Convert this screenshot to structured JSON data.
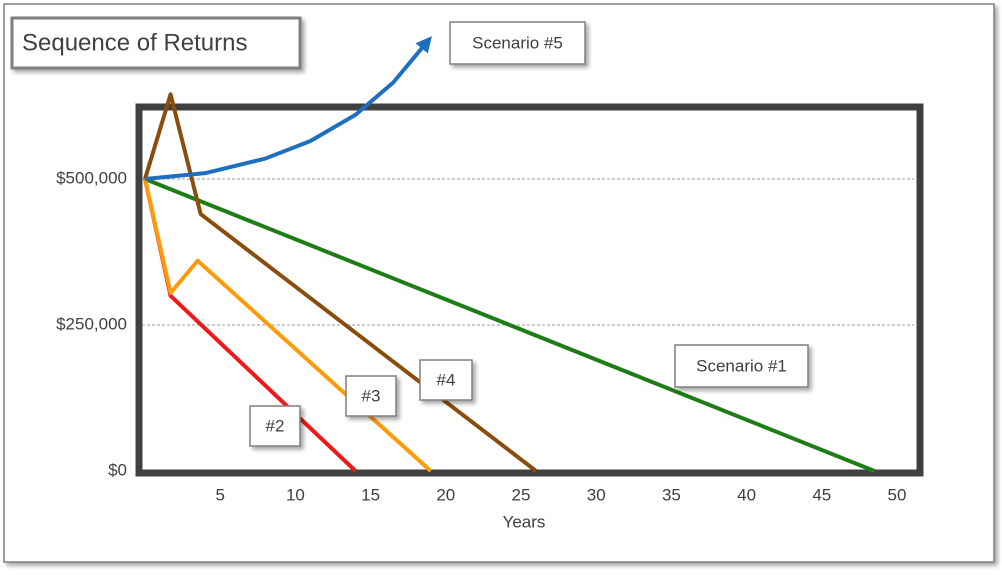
{
  "chart_data": {
    "type": "line",
    "title": "Sequence of Returns",
    "x_label": "Years",
    "xlim": [
      0,
      51.5
    ],
    "xticks": [
      5,
      10,
      15,
      20,
      25,
      30,
      35,
      40,
      45,
      50
    ],
    "ylim": [
      0,
      620000
    ],
    "yticks": [
      {
        "value": 0,
        "label": "$0"
      },
      {
        "value": 250000,
        "label": "$250,000"
      },
      {
        "value": 500000,
        "label": "$500,000"
      }
    ],
    "grid": true,
    "series": [
      {
        "name": "Scenario #1",
        "color": "#1e7d14",
        "x": [
          0,
          48.5
        ],
        "values": [
          500000,
          0
        ]
      },
      {
        "name": "#2",
        "color": "#f01818",
        "x": [
          0,
          1.7,
          14
        ],
        "values": [
          500000,
          300000,
          0
        ]
      },
      {
        "name": "#3",
        "color": "#ff9a0a",
        "x": [
          0,
          1.7,
          3.5,
          19
        ],
        "values": [
          500000,
          305000,
          360000,
          0
        ]
      },
      {
        "name": "#4",
        "color": "#8a4d0c",
        "x": [
          0,
          1.7,
          3.7,
          26
        ],
        "values": [
          500000,
          645000,
          440000,
          0
        ]
      },
      {
        "name": "Scenario #5",
        "color": "#1f6fbf",
        "x": [
          0,
          4,
          8,
          11,
          14,
          16.5,
          18.6
        ],
        "values": [
          500000,
          510000,
          535000,
          565000,
          610000,
          665000,
          730000
        ]
      }
    ]
  }
}
